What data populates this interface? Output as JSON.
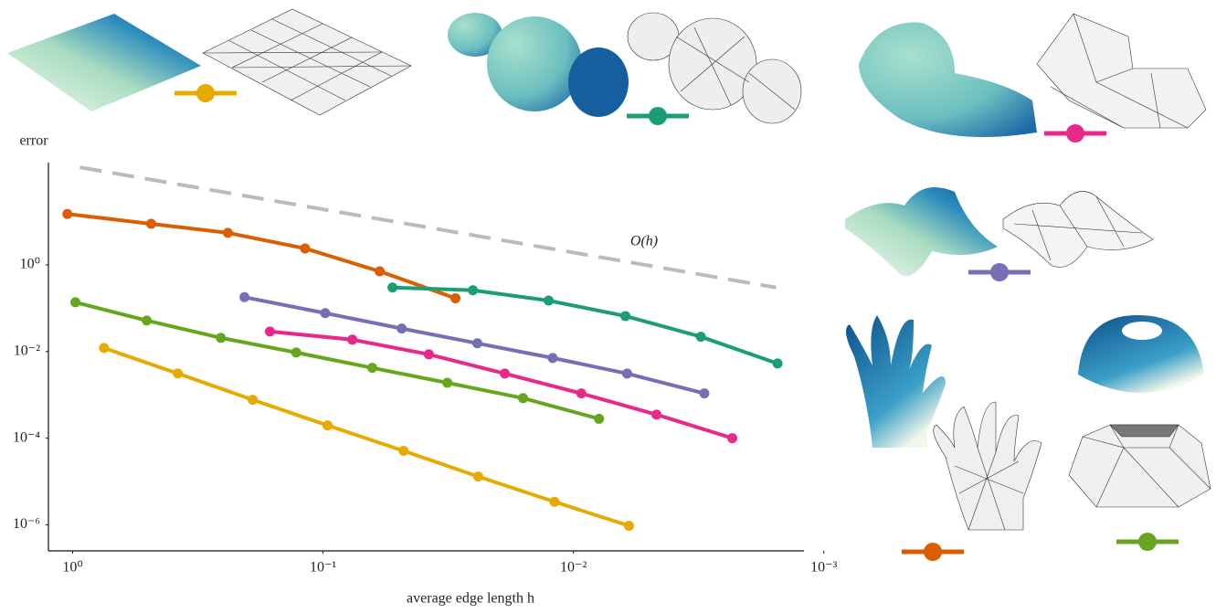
{
  "chart_data": {
    "type": "line",
    "y_label": "error",
    "x_label": "average edge length h",
    "log_x": true,
    "log_y": true,
    "x_reversed": true,
    "xlim": [
      1.25,
      0.0012
    ],
    "ylim": [
      2.5e-07,
      230
    ],
    "xticks": [
      {
        "value": 1,
        "label": "10⁰"
      },
      {
        "value": 0.1,
        "label": "10⁻¹"
      },
      {
        "value": 0.01,
        "label": "10⁻²"
      },
      {
        "value": 0.001,
        "label": "10⁻³"
      }
    ],
    "yticks": [
      {
        "value": 1,
        "label": "10⁰"
      },
      {
        "value": 0.01,
        "label": "10⁻²"
      },
      {
        "value": 0.0001,
        "label": "10⁻⁴"
      },
      {
        "value": 1e-06,
        "label": "10⁻⁶"
      }
    ],
    "series": [
      {
        "color": "#d95f02",
        "x": [
          1.05,
          0.486,
          0.24,
          0.118,
          0.0594,
          0.0296
        ],
        "values": [
          15,
          8.9,
          5.5,
          2.4,
          0.71,
          0.17
        ]
      },
      {
        "color": "#1b9e77",
        "x": [
          0.0528,
          0.0252,
          0.01256,
          0.0062,
          0.0031,
          0.00153
        ],
        "values": [
          0.3,
          0.26,
          0.15,
          0.066,
          0.022,
          0.0053
        ]
      },
      {
        "color": "#7570b3",
        "x": [
          0.206,
          0.098,
          0.0485,
          0.0242,
          0.0121,
          0.0061,
          0.003
        ],
        "values": [
          0.18,
          0.077,
          0.034,
          0.0155,
          0.0071,
          0.0031,
          0.00108
        ]
      },
      {
        "color": "#e7298a",
        "x": [
          0.163,
          0.0764,
          0.0378,
          0.0188,
          0.0093,
          0.00466,
          0.00232
        ],
        "values": [
          0.029,
          0.0188,
          0.0086,
          0.0031,
          0.00108,
          0.00035,
          0.0001
        ]
      },
      {
        "color": "#66a61e",
        "x": [
          0.975,
          0.506,
          0.256,
          0.128,
          0.0636,
          0.0319,
          0.0159,
          0.0079
        ],
        "values": [
          0.137,
          0.052,
          0.0207,
          0.0095,
          0.0042,
          0.0019,
          0.00084,
          0.00028
        ]
      },
      {
        "color": "#e6ab02",
        "x": [
          0.75,
          0.38,
          0.191,
          0.096,
          0.0477,
          0.024,
          0.0119,
          0.006
        ],
        "values": [
          0.0121,
          0.0031,
          0.00077,
          0.000197,
          5.1e-05,
          1.3e-05,
          3.4e-06,
          9.5e-07
        ]
      }
    ],
    "reference": {
      "label": "O(h)",
      "color": "#bbbbbb",
      "x": [
        0.935,
        0.00155
      ],
      "values": [
        179,
        0.3
      ]
    }
  }
}
